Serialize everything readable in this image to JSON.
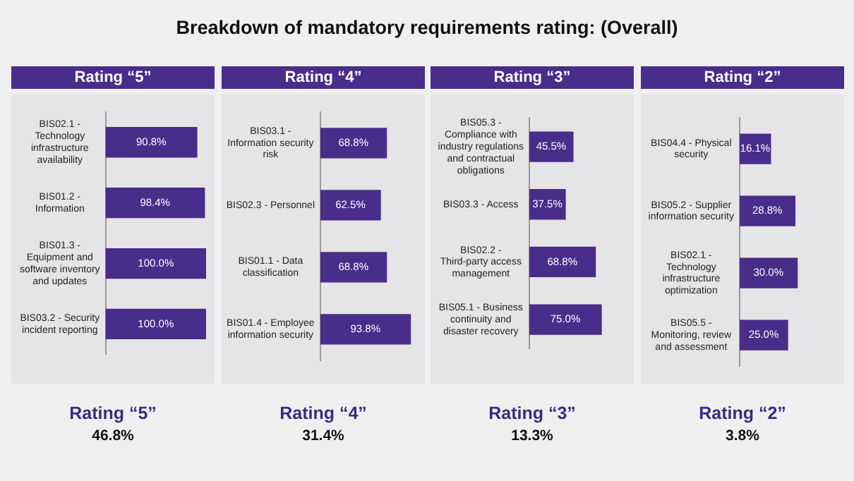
{
  "chart_data": [
    {
      "type": "bar",
      "orientation": "horizontal",
      "subtitle": "Breakdown of mandatory requirements rating: (Overall)",
      "title": "Rating “5”",
      "categories": [
        "BIS02.1 - Technology infrastructure availability",
        "BIS01.2 - Information",
        "BIS01.3 - Equipment and software inventory and updates",
        "BIS03.2 - Security incident reporting"
      ],
      "values": [
        90.8,
        98.4,
        100.0,
        100.0
      ],
      "value_labels": [
        "90.8%",
        "98.4%",
        "100.0%",
        "100.0%"
      ],
      "color": "#4a2c8a",
      "annotations": [
        "Rating “5”",
        "46.8%"
      ]
    },
    {
      "type": "bar",
      "orientation": "horizontal",
      "title": "Rating “4”",
      "categories": [
        "BIS03.1 - Information security risk",
        "BIS02.3 - Personnel",
        "BIS01.1 - Data classification",
        "BIS01.4 - Employee information security"
      ],
      "values": [
        68.8,
        62.5,
        68.8,
        93.8
      ],
      "value_labels": [
        "68.8%",
        "62.5%",
        "68.8%",
        "93.8%"
      ],
      "color": "#4a2c8a",
      "annotations": [
        "Rating “4”",
        "31.4%"
      ]
    },
    {
      "type": "bar",
      "orientation": "horizontal",
      "title": "Rating “3”",
      "categories": [
        "BIS05.3 - Compliance with industry regulations and contractual obligations",
        "BIS03.3 - Access",
        "BIS02.2 - Third-party access management",
        "BIS05.1 - Business continuity and disaster recovery"
      ],
      "values": [
        45.5,
        37.5,
        68.8,
        75.0
      ],
      "value_labels": [
        "45.5%",
        "37.5%",
        "68.8%",
        "75.0%"
      ],
      "color": "#4a2c8a",
      "annotations": [
        "Rating “3”",
        "13.3%"
      ]
    },
    {
      "type": "bar",
      "orientation": "horizontal",
      "title": "Rating “2”",
      "categories": [
        "BIS04.4 - Physical security",
        "BIS05.2 - Supplier information security",
        "BIS02.1 - Technology infrastructure optimization",
        "BIS05.5 - Monitoring, review and assessment"
      ],
      "values": [
        16.1,
        28.8,
        30.0,
        25.0
      ],
      "value_labels": [
        "16.1%",
        "28.8%",
        "30.0%",
        "25.0%"
      ],
      "color": "#4a2c8a",
      "annotations": [
        "Rating “2”",
        "3.8%"
      ]
    }
  ]
}
